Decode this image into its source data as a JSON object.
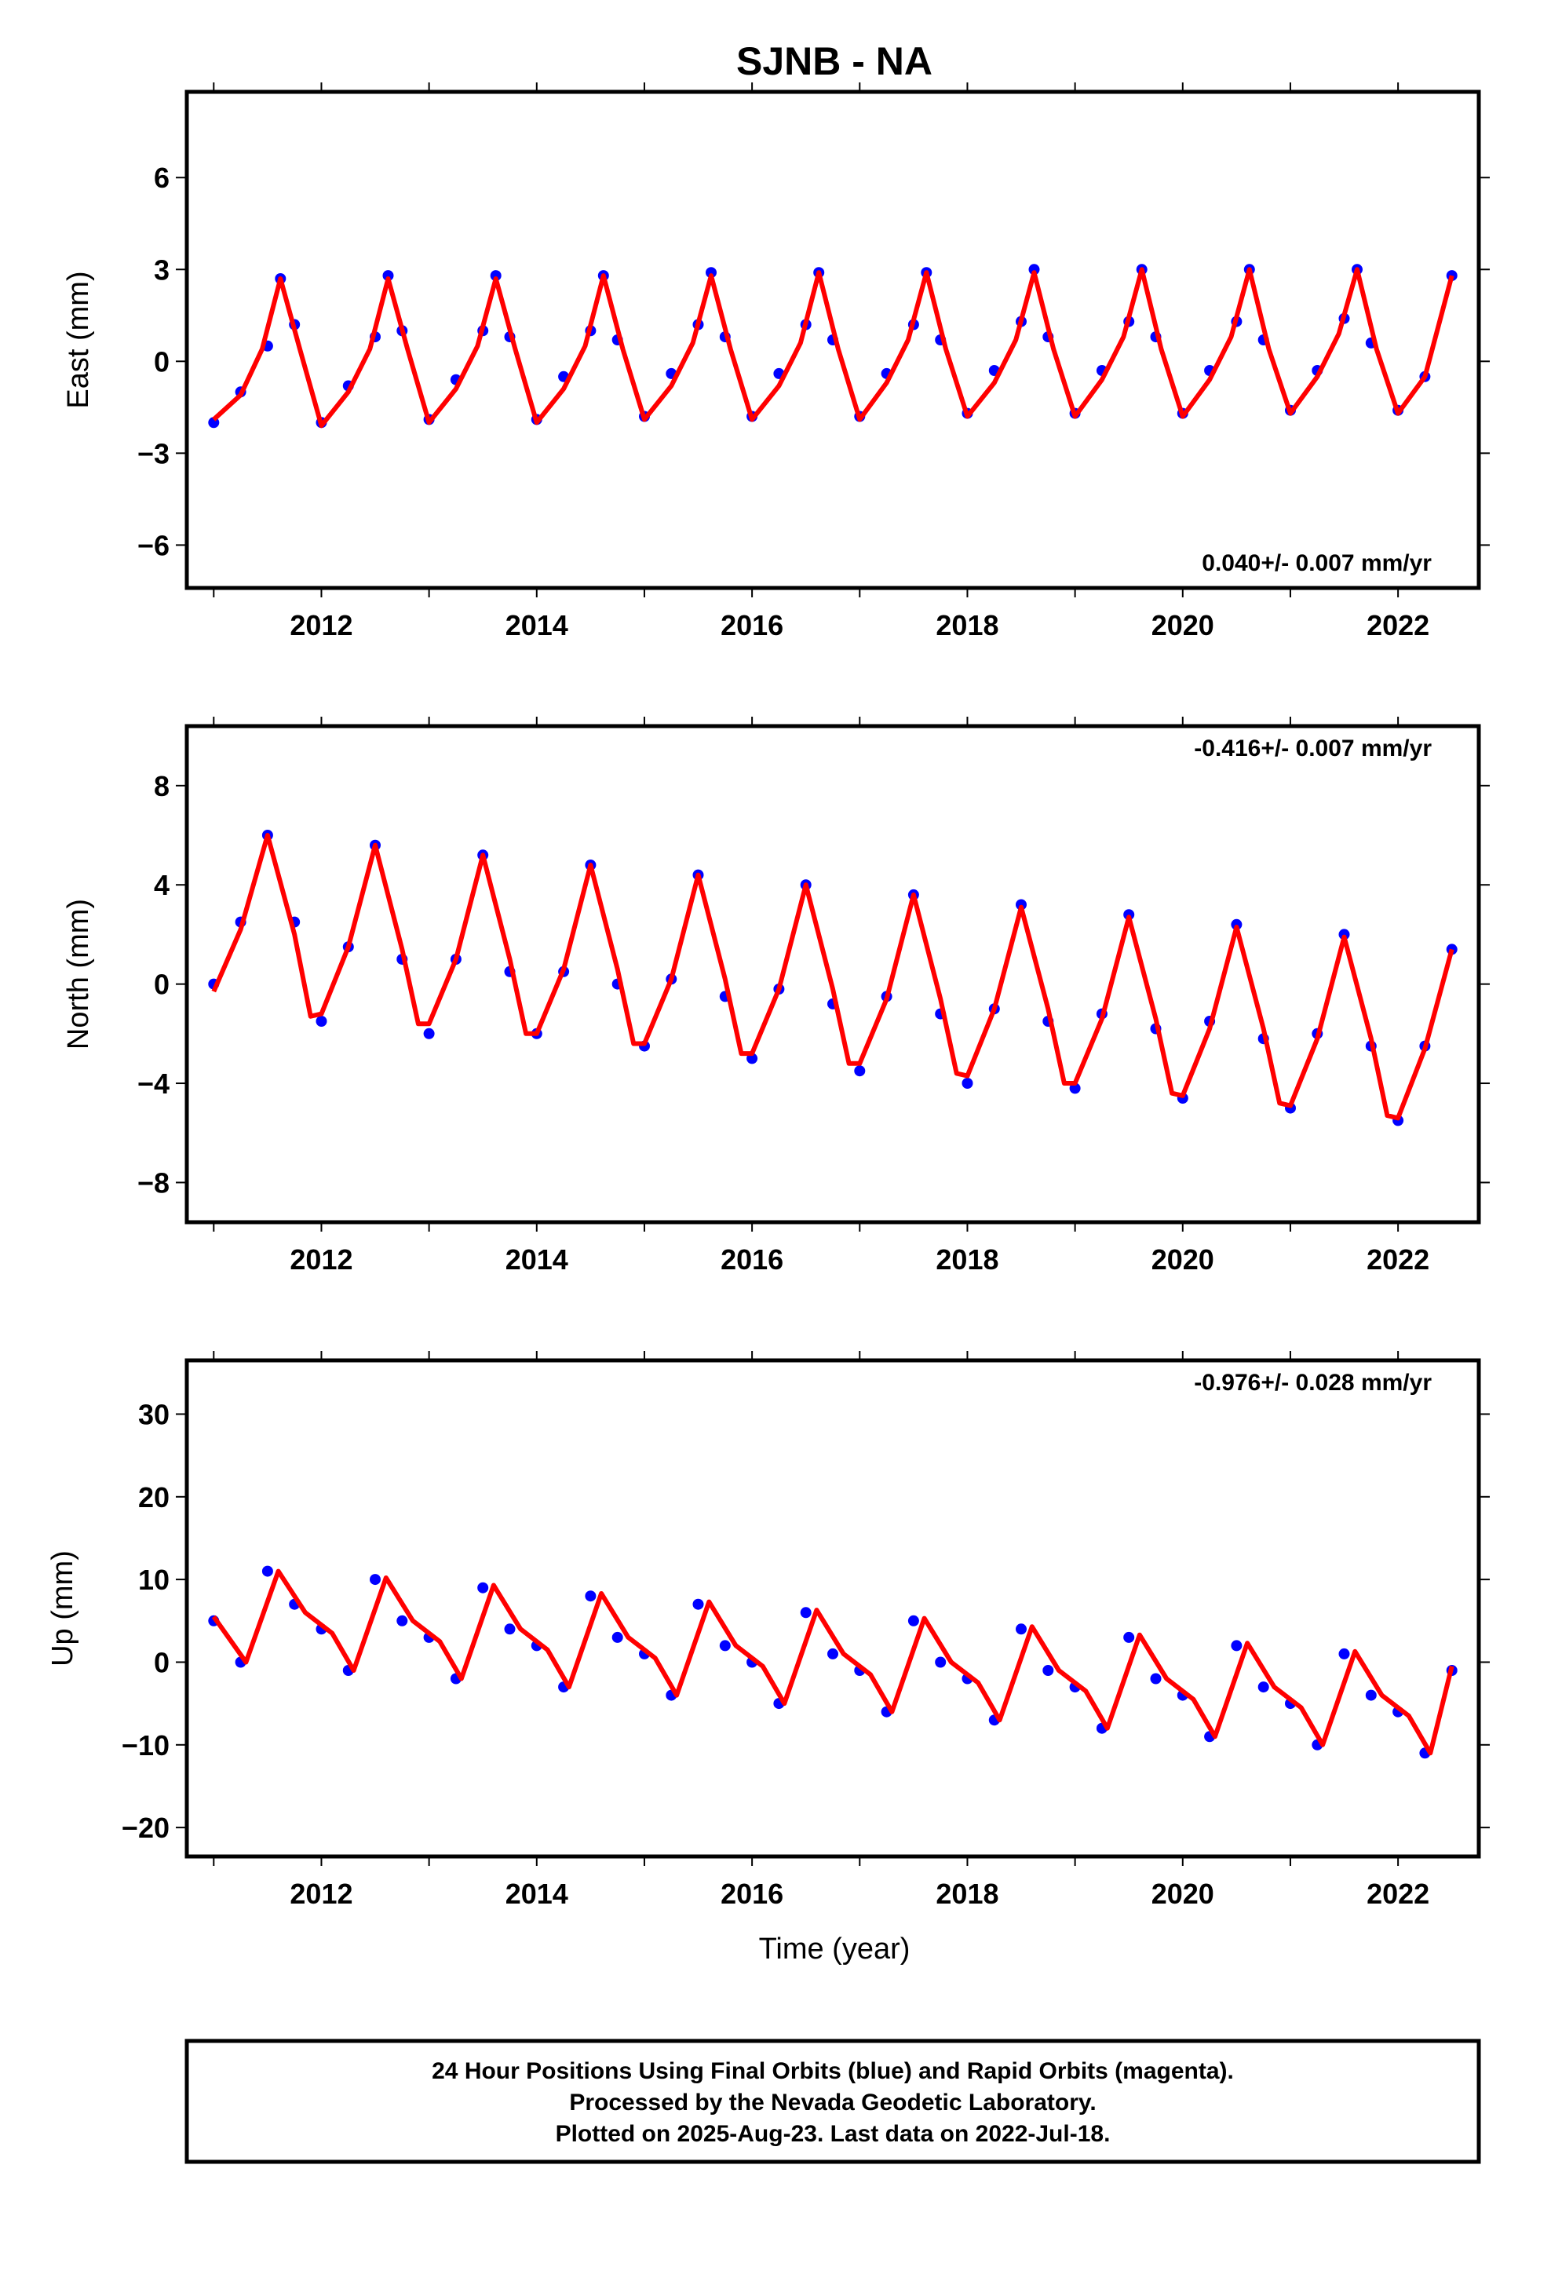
{
  "title": "SJNB - NA",
  "colors": {
    "points": "#0000ff",
    "model": "#ff0000",
    "axes": "#000000"
  },
  "chart_data": [
    {
      "type": "scatter",
      "ylabel": "East (mm)",
      "xlabel": "",
      "xlim": [
        2010.75,
        2022.75
      ],
      "ylim": [
        -7.4,
        8.8
      ],
      "xticks": [
        2012,
        2014,
        2016,
        2018,
        2020,
        2022
      ],
      "yticks": [
        -6,
        -3,
        0,
        3,
        6
      ],
      "rate_label": "0.040+/- 0.007 mm/yr",
      "rate_position": "bottom-right",
      "grid": false,
      "series": [
        {
          "kind": "points",
          "x": [
            2011.0,
            2011.25,
            2011.5,
            2011.62,
            2011.75,
            2012.0,
            2012.25,
            2012.5,
            2012.62,
            2012.75,
            2013.0,
            2013.25,
            2013.5,
            2013.62,
            2013.75,
            2014.0,
            2014.25,
            2014.5,
            2014.62,
            2014.75,
            2015.0,
            2015.25,
            2015.5,
            2015.62,
            2015.75,
            2016.0,
            2016.25,
            2016.5,
            2016.62,
            2016.75,
            2017.0,
            2017.25,
            2017.5,
            2017.62,
            2017.75,
            2018.0,
            2018.25,
            2018.5,
            2018.62,
            2018.75,
            2019.0,
            2019.25,
            2019.5,
            2019.62,
            2019.75,
            2020.0,
            2020.25,
            2020.5,
            2020.62,
            2020.75,
            2021.0,
            2021.25,
            2021.5,
            2021.62,
            2021.75,
            2022.0,
            2022.25,
            2022.5
          ],
          "y": [
            -2.0,
            -1.0,
            0.5,
            2.7,
            1.2,
            -2.0,
            -0.8,
            0.8,
            2.8,
            1.0,
            -1.9,
            -0.6,
            1.0,
            2.8,
            0.8,
            -1.9,
            -0.5,
            1.0,
            2.8,
            0.7,
            -1.8,
            -0.4,
            1.2,
            2.9,
            0.8,
            -1.8,
            -0.4,
            1.2,
            2.9,
            0.7,
            -1.8,
            -0.4,
            1.2,
            2.9,
            0.7,
            -1.7,
            -0.3,
            1.3,
            3.0,
            0.8,
            -1.7,
            -0.3,
            1.3,
            3.0,
            0.8,
            -1.7,
            -0.3,
            1.3,
            3.0,
            0.7,
            -1.6,
            -0.3,
            1.4,
            3.0,
            0.6,
            -1.6,
            -0.5,
            2.8
          ]
        },
        {
          "kind": "line",
          "x": [
            2011.0,
            2011.25,
            2011.45,
            2011.62,
            2011.8,
            2012.0,
            2012.25,
            2012.45,
            2012.62,
            2012.8,
            2013.0,
            2013.25,
            2013.45,
            2013.62,
            2013.8,
            2014.0,
            2014.25,
            2014.45,
            2014.62,
            2014.8,
            2015.0,
            2015.25,
            2015.45,
            2015.62,
            2015.8,
            2016.0,
            2016.25,
            2016.45,
            2016.62,
            2016.8,
            2017.0,
            2017.25,
            2017.45,
            2017.62,
            2017.8,
            2018.0,
            2018.25,
            2018.45,
            2018.62,
            2018.8,
            2019.0,
            2019.25,
            2019.45,
            2019.62,
            2019.8,
            2020.0,
            2020.25,
            2020.45,
            2020.62,
            2020.8,
            2021.0,
            2021.25,
            2021.45,
            2021.62,
            2021.8,
            2022.0,
            2022.25,
            2022.5
          ],
          "y": [
            -1.9,
            -1.1,
            0.4,
            2.7,
            0.4,
            -2.1,
            -1.0,
            0.4,
            2.7,
            0.4,
            -2.0,
            -0.9,
            0.5,
            2.7,
            0.4,
            -2.0,
            -0.9,
            0.5,
            2.8,
            0.4,
            -1.9,
            -0.8,
            0.6,
            2.8,
            0.4,
            -1.9,
            -0.8,
            0.6,
            2.9,
            0.4,
            -1.9,
            -0.7,
            0.7,
            2.9,
            0.4,
            -1.8,
            -0.7,
            0.7,
            2.9,
            0.4,
            -1.8,
            -0.6,
            0.8,
            3.0,
            0.4,
            -1.8,
            -0.6,
            0.8,
            3.0,
            0.4,
            -1.7,
            -0.5,
            0.9,
            3.0,
            0.4,
            -1.7,
            -0.5,
            2.8
          ]
        }
      ]
    },
    {
      "type": "scatter",
      "ylabel": "North (mm)",
      "xlabel": "",
      "xlim": [
        2010.75,
        2022.75
      ],
      "ylim": [
        -9.6,
        10.4
      ],
      "xticks": [
        2012,
        2014,
        2016,
        2018,
        2020,
        2022
      ],
      "yticks": [
        -8,
        -4,
        0,
        4,
        8
      ],
      "rate_label": "-0.416+/- 0.007 mm/yr",
      "rate_position": "top-right",
      "grid": false,
      "series": [
        {
          "kind": "points",
          "x": [
            2011.0,
            2011.25,
            2011.5,
            2011.75,
            2012.0,
            2012.25,
            2012.5,
            2012.75,
            2013.0,
            2013.25,
            2013.5,
            2013.75,
            2014.0,
            2014.25,
            2014.5,
            2014.75,
            2015.0,
            2015.25,
            2015.5,
            2015.75,
            2016.0,
            2016.25,
            2016.5,
            2016.75,
            2017.0,
            2017.25,
            2017.5,
            2017.75,
            2018.0,
            2018.25,
            2018.5,
            2018.75,
            2019.0,
            2019.25,
            2019.5,
            2019.75,
            2020.0,
            2020.25,
            2020.5,
            2020.75,
            2021.0,
            2021.25,
            2021.5,
            2021.75,
            2022.0,
            2022.25,
            2022.5
          ],
          "y": [
            0.0,
            2.5,
            6.0,
            2.5,
            -1.5,
            1.5,
            5.6,
            1.0,
            -2.0,
            1.0,
            5.2,
            0.5,
            -2.0,
            0.5,
            4.8,
            0.0,
            -2.5,
            0.2,
            4.4,
            -0.5,
            -3.0,
            -0.2,
            4.0,
            -0.8,
            -3.5,
            -0.5,
            3.6,
            -1.2,
            -4.0,
            -1.0,
            3.2,
            -1.5,
            -4.2,
            -1.2,
            2.8,
            -1.8,
            -4.6,
            -1.5,
            2.4,
            -2.2,
            -5.0,
            -2.0,
            2.0,
            -2.5,
            -5.5,
            -2.5,
            1.4
          ]
        },
        {
          "kind": "line",
          "x": [
            2011.0,
            2011.25,
            2011.5,
            2011.75,
            2011.9,
            2012.0,
            2012.25,
            2012.5,
            2012.75,
            2012.9,
            2013.0,
            2013.25,
            2013.5,
            2013.75,
            2013.9,
            2014.0,
            2014.25,
            2014.5,
            2014.75,
            2014.9,
            2015.0,
            2015.25,
            2015.5,
            2015.75,
            2015.9,
            2016.0,
            2016.25,
            2016.5,
            2016.75,
            2016.9,
            2017.0,
            2017.25,
            2017.5,
            2017.75,
            2017.9,
            2018.0,
            2018.25,
            2018.5,
            2018.75,
            2018.9,
            2019.0,
            2019.25,
            2019.5,
            2019.75,
            2019.9,
            2020.0,
            2020.25,
            2020.5,
            2020.75,
            2020.9,
            2021.0,
            2021.25,
            2021.5,
            2021.75,
            2021.9,
            2022.0,
            2022.25,
            2022.5
          ],
          "y": [
            -0.3,
            2.2,
            6.0,
            2.0,
            -1.3,
            -1.2,
            1.5,
            5.6,
            1.4,
            -1.6,
            -1.6,
            1.0,
            5.2,
            1.0,
            -2.0,
            -2.0,
            0.6,
            4.8,
            0.6,
            -2.4,
            -2.4,
            0.2,
            4.4,
            0.2,
            -2.8,
            -2.8,
            -0.2,
            4.0,
            -0.2,
            -3.2,
            -3.2,
            -0.6,
            3.6,
            -0.6,
            -3.6,
            -3.7,
            -1.0,
            3.1,
            -1.0,
            -4.0,
            -4.0,
            -1.4,
            2.7,
            -1.4,
            -4.4,
            -4.5,
            -1.8,
            2.3,
            -1.8,
            -4.8,
            -4.9,
            -2.2,
            1.9,
            -2.2,
            -5.3,
            -5.4,
            -2.6,
            1.4
          ]
        }
      ]
    },
    {
      "type": "scatter",
      "ylabel": "Up (mm)",
      "xlabel": "Time (year)",
      "xlim": [
        2010.75,
        2022.75
      ],
      "ylim": [
        -23.5,
        36.5
      ],
      "xticks": [
        2012,
        2014,
        2016,
        2018,
        2020,
        2022
      ],
      "yticks": [
        -20,
        -10,
        0,
        10,
        20,
        30
      ],
      "rate_label": "-0.976+/- 0.028 mm/yr",
      "rate_position": "top-right",
      "grid": false,
      "series": [
        {
          "kind": "points",
          "x": [
            2011.0,
            2011.25,
            2011.5,
            2011.75,
            2012.0,
            2012.25,
            2012.5,
            2012.75,
            2013.0,
            2013.25,
            2013.5,
            2013.75,
            2014.0,
            2014.25,
            2014.5,
            2014.75,
            2015.0,
            2015.25,
            2015.5,
            2015.75,
            2016.0,
            2016.25,
            2016.5,
            2016.75,
            2017.0,
            2017.25,
            2017.5,
            2017.75,
            2018.0,
            2018.25,
            2018.5,
            2018.75,
            2019.0,
            2019.25,
            2019.5,
            2019.75,
            2020.0,
            2020.25,
            2020.5,
            2020.75,
            2021.0,
            2021.25,
            2021.5,
            2021.75,
            2022.0,
            2022.25,
            2022.5
          ],
          "y": [
            5,
            0,
            11,
            7,
            4,
            -1,
            10,
            5,
            3,
            -2,
            9,
            4,
            2,
            -3,
            8,
            3,
            1,
            -4,
            7,
            2,
            0,
            -5,
            6,
            1,
            -1,
            -6,
            5,
            0,
            -2,
            -7,
            4,
            -1,
            -3,
            -8,
            3,
            -2,
            -4,
            -9,
            2,
            -3,
            -5,
            -10,
            1,
            -4,
            -6,
            -11,
            -1
          ]
        },
        {
          "kind": "line",
          "x": [
            2011.0,
            2011.3,
            2011.6,
            2011.85,
            2012.1,
            2012.3,
            2012.6,
            2012.85,
            2013.1,
            2013.3,
            2013.6,
            2013.85,
            2014.1,
            2014.3,
            2014.6,
            2014.85,
            2015.1,
            2015.3,
            2015.6,
            2015.85,
            2016.1,
            2016.3,
            2016.6,
            2016.85,
            2017.1,
            2017.3,
            2017.6,
            2017.85,
            2018.1,
            2018.3,
            2018.6,
            2018.85,
            2019.1,
            2019.3,
            2019.6,
            2019.85,
            2020.1,
            2020.3,
            2020.6,
            2020.85,
            2021.1,
            2021.3,
            2021.6,
            2021.85,
            2022.1,
            2022.3,
            2022.5
          ],
          "y": [
            5.5,
            0.0,
            11.0,
            6.0,
            3.5,
            -1.0,
            10.2,
            5.0,
            2.5,
            -2.0,
            9.3,
            4.0,
            1.5,
            -3.0,
            8.3,
            3.0,
            0.5,
            -4.0,
            7.3,
            2.0,
            -0.5,
            -5.0,
            6.3,
            1.0,
            -1.5,
            -6.0,
            5.3,
            0.0,
            -2.5,
            -7.0,
            4.3,
            -1.0,
            -3.5,
            -8.0,
            3.3,
            -2.0,
            -4.5,
            -9.0,
            2.3,
            -3.0,
            -5.5,
            -10.0,
            1.3,
            -4.0,
            -6.5,
            -11.0,
            -0.5
          ]
        }
      ]
    }
  ],
  "footer": {
    "line1": "24 Hour Positions Using Final Orbits (blue) and Rapid Orbits (magenta).",
    "line2": "Processed by the Nevada Geodetic Laboratory.",
    "line3": "Plotted on 2025-Aug-23. Last data on 2022-Jul-18."
  }
}
